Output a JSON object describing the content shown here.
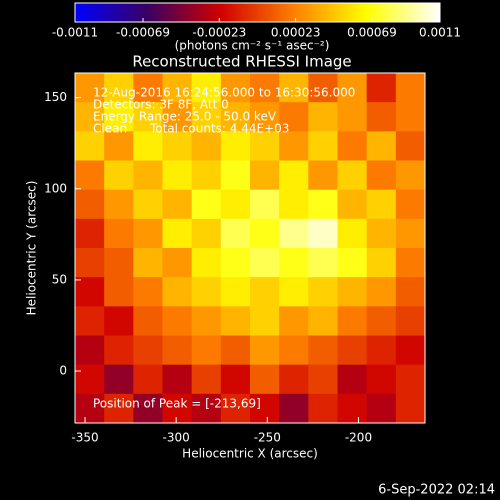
{
  "chart_data": {
    "type": "heatmap",
    "title": "Reconstructed RHESSI Image",
    "xlabel": "Heliocentric X (arcsec)",
    "ylabel": "Heliocentric Y (arcsec)",
    "annotations": [
      "12-Aug-2016 16:24:56.000 to 16:30:56.000",
      "Detectors: 3F 8F, Att 0",
      "Energy Range: 25.0 - 50.0 keV",
      "Clean      Total counts: 4.44E+03"
    ],
    "peak_label": "Position of Peak = [-213,69]",
    "footer": "6-Sep-2022 02:14",
    "colorbar": {
      "label": "(photons cm⁻² s⁻¹ asec⁻²)",
      "lim": [
        -0.0011,
        0.0011
      ],
      "ticks": [
        -0.0011,
        -0.00069,
        -0.00023,
        0.00023,
        0.00069,
        0.0011
      ],
      "colormap": [
        "#0000ff",
        "#3a0060",
        "#d00000",
        "#ff8000",
        "#ffff00",
        "#ffffff"
      ]
    },
    "xlim": [
      -355.5,
      -163.5
    ],
    "ylim": [
      -28.5,
      163.5
    ],
    "xticks": [
      -350,
      -300,
      -250,
      -200
    ],
    "yticks": [
      0,
      50,
      100,
      150
    ],
    "x": [
      -347.5,
      -331.5,
      -315.5,
      -299.5,
      -283.5,
      -267.5,
      -251.5,
      -235.5,
      -219.5,
      -203.5,
      -187.5,
      -171.5
    ],
    "y": [
      155.5,
      139.5,
      123.5,
      107.5,
      91.5,
      75.5,
      59.5,
      43.5,
      27.5,
      11.5,
      -4.5,
      -20.5
    ],
    "z": [
      [
        0.0003,
        0.0005,
        0.0002,
        0.0004,
        0.0006,
        0.0003,
        0.0002,
        0.0004,
        0.0001,
        0.0003,
        -0.0001,
        0.0002
      ],
      [
        0.0004,
        0.0006,
        0.0005,
        0.0003,
        0.0005,
        0.0004,
        0.0003,
        0.0002,
        0.0004,
        0.0003,
        0.0001,
        0.0002
      ],
      [
        0.0005,
        0.0003,
        0.0006,
        0.0005,
        0.0004,
        0.0006,
        0.0005,
        0.0003,
        0.0005,
        0.0002,
        0.0004,
        0.0001
      ],
      [
        0.0002,
        0.0005,
        0.0004,
        0.0006,
        0.0005,
        0.0007,
        0.0004,
        0.0006,
        0.0003,
        0.0005,
        0.0002,
        0.0003
      ],
      [
        0.0001,
        0.0003,
        0.0005,
        0.0004,
        0.0007,
        0.0006,
        0.0008,
        0.0006,
        0.0007,
        0.0004,
        0.0005,
        0.0002
      ],
      [
        -0.0001,
        0.0002,
        0.0003,
        0.0006,
        0.0005,
        0.0008,
        0.0007,
        0.0009,
        0.001,
        0.0006,
        0.0004,
        0.0003
      ],
      [
        0,
        0.0001,
        0.0004,
        0.0003,
        0.0006,
        0.0007,
        0.0008,
        0.0007,
        0.0008,
        0.0007,
        0.0005,
        0.0002
      ],
      [
        -0.0002,
        0.0001,
        0.0002,
        0.0004,
        0.0005,
        0.0006,
        0.0005,
        0.0006,
        0.0005,
        0.0004,
        0.0003,
        0.0001
      ],
      [
        -0.0001,
        -0.0002,
        0.0001,
        0.0002,
        0.0003,
        0.0004,
        0.0005,
        0.0003,
        0.0004,
        0.0002,
        0.0001,
        0
      ],
      [
        -0.0003,
        -0.0001,
        0,
        0.0001,
        0.0002,
        0.0001,
        0.0003,
        0.0002,
        0.0001,
        0,
        -0.0001,
        -0.0002
      ],
      [
        -0.0002,
        -0.0004,
        -0.0001,
        -0.0003,
        0,
        -0.0002,
        0.0001,
        -0.0001,
        0,
        -0.0003,
        -0.0002,
        -0.0001
      ],
      [
        -0.0003,
        -0.0001,
        -0.0004,
        -0.0002,
        -0.0003,
        -0.0001,
        -0.0002,
        -0.0004,
        -0.0001,
        -0.0002,
        -0.0003,
        -0.0001
      ]
    ]
  }
}
